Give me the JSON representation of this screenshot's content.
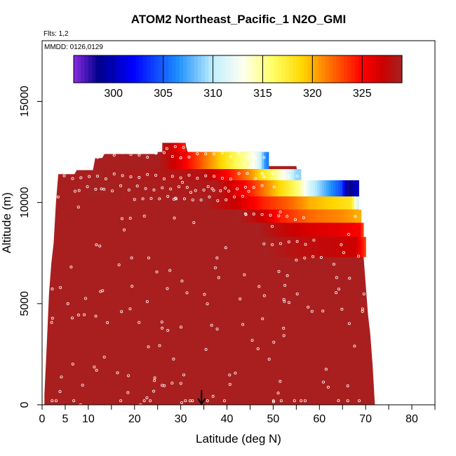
{
  "chart_data": {
    "type": "heatmap",
    "title": "ATOM2 Northeast_Pacific_1 N2O_GMI",
    "flights_label": "Flts: 1,2",
    "dates_label": "MMDD: 0126,0129",
    "xlabel": "Latitude (deg N)",
    "ylabel": "Altitude (m)",
    "xlim": [
      0,
      85
    ],
    "ylim": [
      0,
      18000
    ],
    "x_ticks": [
      0,
      5,
      10,
      20,
      30,
      40,
      50,
      60,
      70,
      80
    ],
    "y_ticks": [
      0,
      5000,
      10000,
      15000
    ],
    "colorbar": {
      "range": [
        296,
        329
      ],
      "ticks": [
        300,
        305,
        310,
        315,
        320,
        325
      ],
      "stops": [
        {
          "v": 296.0,
          "c": "#8a2be2"
        },
        {
          "v": 298.5,
          "c": "#00008b"
        },
        {
          "v": 302.0,
          "c": "#0000ff"
        },
        {
          "v": 306.5,
          "c": "#1e90ff"
        },
        {
          "v": 310.0,
          "c": "#bfefff"
        },
        {
          "v": 313.0,
          "c": "#fffff0"
        },
        {
          "v": 316.0,
          "c": "#ffff66"
        },
        {
          "v": 319.0,
          "c": "#ffd700"
        },
        {
          "v": 321.0,
          "c": "#ff8c00"
        },
        {
          "v": 323.0,
          "c": "#ff4500"
        },
        {
          "v": 325.0,
          "c": "#ff0000"
        },
        {
          "v": 327.0,
          "c": "#cd0000"
        },
        {
          "v": 329.0,
          "c": "#a52222"
        }
      ]
    },
    "background_value": 328.8,
    "domain_top_alt": [
      [
        0.5,
        500
      ],
      [
        1.0,
        2900
      ],
      [
        1.5,
        5500
      ],
      [
        2.0,
        7000
      ],
      [
        2.5,
        8000
      ],
      [
        3.0,
        10000
      ],
      [
        3.5,
        11400
      ],
      [
        7.0,
        11400
      ],
      [
        7.5,
        11600
      ],
      [
        11.0,
        11600
      ],
      [
        11.5,
        12200
      ],
      [
        13.0,
        12200
      ],
      [
        13.5,
        12400
      ],
      [
        26.0,
        12400
      ],
      [
        26.5,
        12900
      ],
      [
        31.0,
        12900
      ],
      [
        31.5,
        12500
      ],
      [
        48.0,
        12500
      ],
      [
        48.5,
        11800
      ],
      [
        55.0,
        11800
      ],
      [
        55.5,
        11100
      ],
      [
        68.0,
        11100
      ],
      [
        68.5,
        9500
      ],
      [
        69.0,
        8500
      ],
      [
        69.5,
        7500
      ],
      [
        70.0,
        6000
      ],
      [
        70.5,
        4500
      ],
      [
        71.0,
        3500
      ],
      [
        71.5,
        2000
      ],
      [
        72.0,
        0
      ]
    ],
    "layers": [
      {
        "alt_min": 12500,
        "alt_max": 12950,
        "x0": 26,
        "x1": 31,
        "values": [
          [
            26,
            328.5
          ],
          [
            28,
            327.0
          ],
          [
            30,
            325.0
          ],
          [
            31,
            324.0
          ]
        ]
      },
      {
        "alt_min": 11650,
        "alt_max": 12500,
        "x0": 25,
        "x1": 49,
        "values": [
          [
            25,
            329.0
          ],
          [
            30,
            326.0
          ],
          [
            35,
            322.0
          ],
          [
            40,
            318.0
          ],
          [
            45,
            314.0
          ],
          [
            47,
            311.0
          ],
          [
            48.5,
            306.0
          ]
        ]
      },
      {
        "alt_min": 11050,
        "alt_max": 11650,
        "x0": 11,
        "x1": 56,
        "values": [
          [
            11,
            329.0
          ],
          [
            35,
            328.0
          ],
          [
            40,
            325.0
          ],
          [
            45,
            321.0
          ],
          [
            50,
            316.0
          ],
          [
            53,
            312.0
          ],
          [
            55,
            309.0
          ]
        ]
      },
      {
        "alt_min": 10300,
        "alt_max": 11100,
        "x0": 10,
        "x1": 68.5,
        "values": [
          [
            10,
            329.0
          ],
          [
            38,
            328.5
          ],
          [
            44,
            325.0
          ],
          [
            50,
            320.0
          ],
          [
            55,
            316.0
          ],
          [
            58,
            311.0
          ],
          [
            62,
            307.0
          ],
          [
            65,
            304.0
          ],
          [
            66,
            298.0
          ],
          [
            68,
            300.0
          ]
        ]
      },
      {
        "alt_min": 9650,
        "alt_max": 10300,
        "x0": 35,
        "x1": 68.5,
        "values": [
          [
            35,
            329.0
          ],
          [
            42,
            327.0
          ],
          [
            48,
            324.0
          ],
          [
            54,
            322.0
          ],
          [
            58,
            320.0
          ],
          [
            63,
            319.0
          ],
          [
            67,
            318.0
          ],
          [
            68.5,
            310.0
          ]
        ]
      },
      {
        "alt_min": 9000,
        "alt_max": 9650,
        "x0": 42,
        "x1": 69,
        "values": [
          [
            42,
            329.0
          ],
          [
            48,
            327.0
          ],
          [
            52,
            324.0
          ],
          [
            58,
            322.0
          ],
          [
            65,
            321.0
          ],
          [
            69,
            320.0
          ]
        ]
      },
      {
        "alt_min": 8300,
        "alt_max": 9000,
        "x0": 46,
        "x1": 69.5,
        "values": [
          [
            46,
            329.0
          ],
          [
            52,
            327.5
          ],
          [
            58,
            326.5
          ],
          [
            64,
            326.0
          ],
          [
            69,
            325.0
          ],
          [
            69.5,
            322.0
          ]
        ]
      },
      {
        "alt_min": 7300,
        "alt_max": 8300,
        "x0": 48,
        "x1": 70,
        "values": [
          [
            48,
            329.0
          ],
          [
            55,
            328.0
          ],
          [
            62,
            327.5
          ],
          [
            68,
            327.0
          ],
          [
            70,
            323.0
          ]
        ]
      }
    ],
    "markers_note": "white open circles mark flight sample locations",
    "arrow_latitude": 34.5
  }
}
